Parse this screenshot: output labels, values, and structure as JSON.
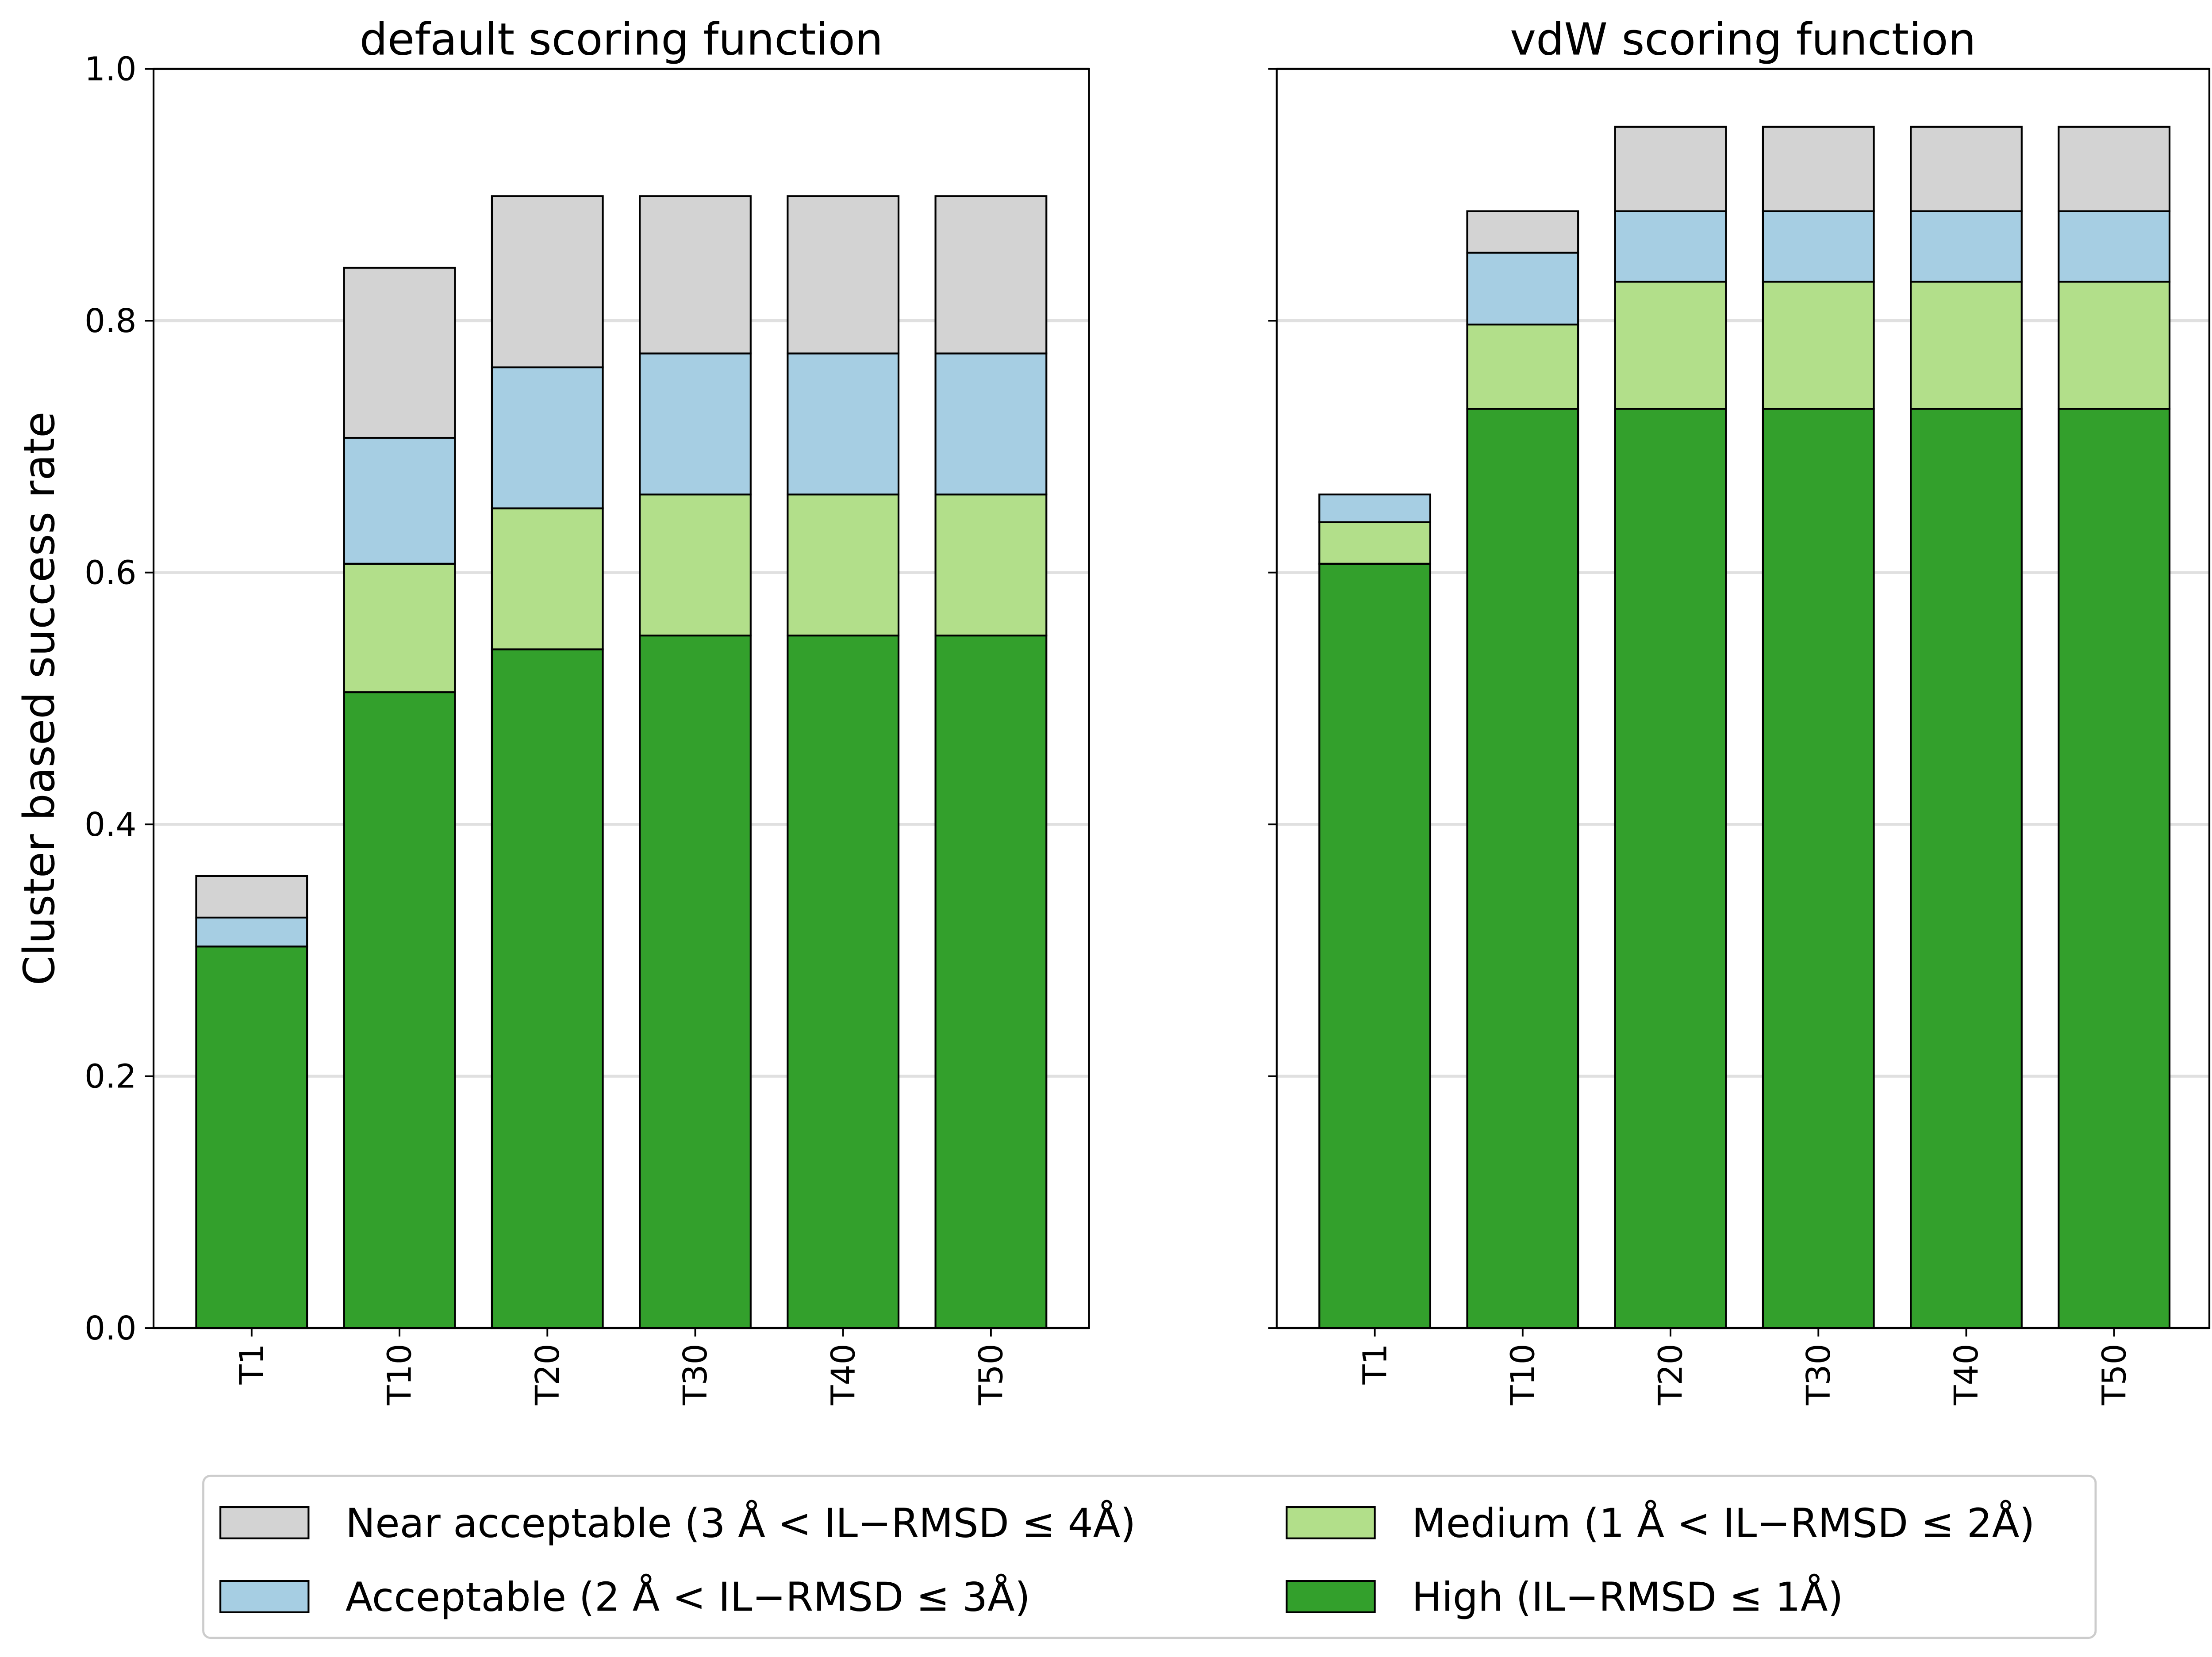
{
  "chart_data": [
    {
      "type": "bar",
      "stacked": true,
      "title": "default scoring function",
      "ylabel": "Cluster based success rate",
      "categories": [
        "T1",
        "T10",
        "T20",
        "T30",
        "T40",
        "T50"
      ],
      "series": [
        {
          "name": "High (IL−RMSD ≤ 1Å)",
          "color": "#33a02c",
          "values": [
            0.303,
            0.505,
            0.539,
            0.55,
            0.55,
            0.55
          ]
        },
        {
          "name": "Medium (1 Å < IL−RMSD ≤ 2Å)",
          "color": "#b2df8a",
          "values": [
            0,
            0.102,
            0.112,
            0.112,
            0.112,
            0.112
          ]
        },
        {
          "name": "Acceptable (2 Å < IL−RMSD ≤ 3Å)",
          "color": "#a6cee3",
          "values": [
            0.023,
            0.1,
            0.112,
            0.112,
            0.112,
            0.112
          ]
        },
        {
          "name": "Near acceptable (3 Å < IL−RMSD ≤ 4Å)",
          "color": "#d3d3d3",
          "values": [
            0.033,
            0.135,
            0.136,
            0.125,
            0.125,
            0.125
          ]
        }
      ],
      "ylim": [
        0,
        1.0
      ],
      "yticks": [
        {
          "value": 0,
          "label": "0.0"
        },
        0.2,
        0.4,
        0.6,
        0.8,
        {
          "value": 1,
          "label": "1.0"
        }
      ],
      "grid": true
    },
    {
      "type": "bar",
      "stacked": true,
      "title": "vdW scoring function",
      "categories": [
        "T1",
        "T10",
        "T20",
        "T30",
        "T40",
        "T50"
      ],
      "series": [
        {
          "color": "#33a02c",
          "values": [
            0.607,
            0.73,
            0.73,
            0.73,
            0.73,
            0.73
          ]
        },
        {
          "color": "#b2df8a",
          "values": [
            0.033,
            0.067,
            0.101,
            0.101,
            0.101,
            0.101
          ]
        },
        {
          "color": "#a6cee3",
          "values": [
            0.022,
            0.057,
            0.056,
            0.056,
            0.056,
            0.056
          ]
        },
        {
          "color": "#d3d3d3",
          "values": [
            0,
            0.033,
            0.067,
            0.067,
            0.067,
            0.067
          ]
        }
      ],
      "ylim": [
        0,
        1.0
      ],
      "yticks": [
        0,
        0.2,
        0.4,
        0.6,
        0.8,
        1
      ],
      "grid": true
    }
  ]
}
